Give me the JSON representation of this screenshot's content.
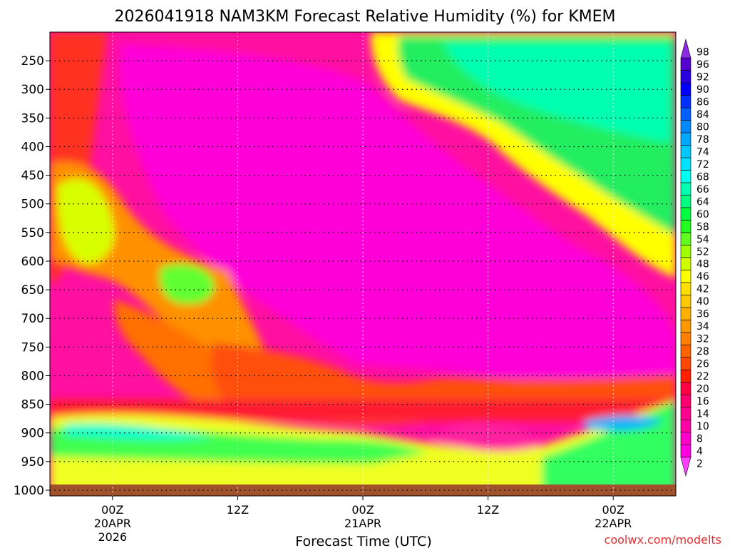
{
  "chart_data": {
    "type": "heatmap",
    "title": "2026041918 NAM3KM Forecast Relative Humidity (%) for KMEM",
    "xlabel": "Forecast Time (UTC)",
    "ylabel": "",
    "y_ticks": [
      "250",
      "300",
      "350",
      "400",
      "450",
      "500",
      "550",
      "600",
      "650",
      "700",
      "750",
      "800",
      "850",
      "900",
      "950",
      "1000"
    ],
    "y_values": [
      250,
      300,
      350,
      400,
      450,
      500,
      550,
      600,
      650,
      700,
      750,
      800,
      850,
      900,
      950,
      1000
    ],
    "x_ticks": [
      {
        "hour": 6,
        "line1": "00Z",
        "line2": "20APR",
        "line3": "2026"
      },
      {
        "hour": 18,
        "line1": "12Z",
        "line2": "",
        "line3": ""
      },
      {
        "hour": 30,
        "line1": "00Z",
        "line2": "21APR",
        "line3": ""
      },
      {
        "hour": 42,
        "line1": "12Z",
        "line2": "",
        "line3": ""
      },
      {
        "hour": 54,
        "line1": "00Z",
        "line2": "22APR",
        "line3": ""
      }
    ],
    "x_range_hours": [
      0,
      60
    ],
    "y_range_hPa": [
      200,
      1010
    ],
    "grid": true,
    "colorbar_labels": [
      "98",
      "96",
      "92",
      "90",
      "86",
      "84",
      "80",
      "78",
      "74",
      "72",
      "68",
      "66",
      "64",
      "60",
      "58",
      "54",
      "52",
      "48",
      "46",
      "42",
      "40",
      "36",
      "34",
      "32",
      "28",
      "26",
      "22",
      "20",
      "16",
      "14",
      "10",
      "8",
      "4",
      "2"
    ],
    "colorbar_colors": [
      "#8a2be2",
      "#5500cc",
      "#2a00e0",
      "#0000ff",
      "#0030ff",
      "#0060ff",
      "#0088ff",
      "#00a8ff",
      "#00c8ff",
      "#00e0ff",
      "#00ffee",
      "#00ffb0",
      "#00ff80",
      "#00ff40",
      "#20ff20",
      "#60ff20",
      "#a0ff00",
      "#d0ff00",
      "#ffff00",
      "#ffe000",
      "#ffc800",
      "#ffb000",
      "#ff9800",
      "#ff8000",
      "#ff6400",
      "#ff4800",
      "#ff2000",
      "#ff0040",
      "#ff0070",
      "#ff0090",
      "#ff00a8",
      "#ff00c8",
      "#ff00e0",
      "#ff40ff"
    ],
    "surface_color": "#a0522d",
    "credit": "coolwx.com/modelts"
  }
}
